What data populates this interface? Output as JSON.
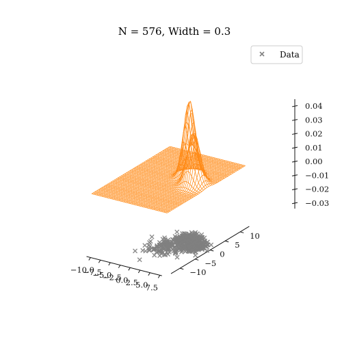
{
  "chart_data": {
    "type": "3d-surface-scatter",
    "title": "N = 576, Width = 0.3",
    "legend": {
      "label": "Data",
      "marker": "x",
      "placement": "top-right"
    },
    "x_axis": {
      "ticks": [
        "−10.0",
        "−7.5",
        "−5.0",
        "−2.5",
        "0.0",
        "2.5",
        "5.0",
        "7.5"
      ],
      "range": [
        -11,
        8
      ]
    },
    "y_axis": {
      "ticks": [
        "−10",
        "−5",
        "0",
        "5",
        "10"
      ],
      "range": [
        -13,
        13
      ]
    },
    "z_axis": {
      "ticks": [
        "−0.03",
        "−0.02",
        "−0.01",
        "0.00",
        "0.01",
        "0.02",
        "0.03",
        "0.04"
      ],
      "range": [
        -0.033,
        0.045
      ]
    },
    "surface": {
      "color": "#ff8c1a",
      "peaks": [
        {
          "x": 1.5,
          "y": 3.0,
          "height": 0.044,
          "sigma": 1.2
        },
        {
          "x": 4.5,
          "y": 0.5,
          "height": 0.03,
          "sigma": 1.3
        }
      ]
    },
    "scatter": {
      "color": "#808080",
      "n": 576,
      "clusters": [
        {
          "x": 1.5,
          "y": 3.0,
          "count": 220,
          "spread": 1.2
        },
        {
          "x": 4.5,
          "y": 0.5,
          "count": 220,
          "spread": 1.3
        },
        {
          "x": 0.0,
          "y": -2.0,
          "count": 136,
          "spread": 2.0
        }
      ],
      "z": -0.034
    }
  }
}
